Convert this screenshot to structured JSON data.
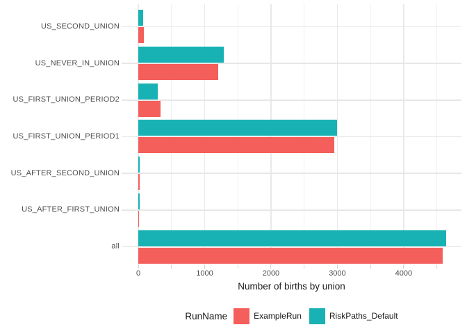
{
  "chart_data": {
    "type": "bar",
    "orientation": "horizontal",
    "title": "",
    "xlabel": "Number of births by union",
    "ylabel": "",
    "categories_top_to_bottom": [
      "US_SECOND_UNION",
      "US_NEVER_IN_UNION",
      "US_FIRST_UNION_PERIOD2",
      "US_FIRST_UNION_PERIOD1",
      "US_AFTER_SECOND_UNION",
      "US_AFTER_FIRST_UNION",
      "all"
    ],
    "series": [
      {
        "name": "ExampleRun",
        "color": "#F45E5B",
        "values": [
          85,
          1205,
          330,
          2950,
          18,
          15,
          4590
        ]
      },
      {
        "name": "RiskPaths_Default",
        "color": "#18B2B5",
        "values": [
          70,
          1290,
          290,
          3000,
          20,
          18,
          4640
        ]
      }
    ],
    "bar_order_within_group_top_to_bottom": [
      "RiskPaths_Default",
      "ExampleRun"
    ],
    "x_major_ticks": [
      0,
      1000,
      2000,
      3000,
      4000
    ],
    "x_minor_ticks": [
      500,
      1500,
      2500,
      3500,
      4500
    ],
    "xlim": [
      0,
      4870
    ],
    "grid": true,
    "legend": {
      "title": "RunName",
      "position": "bottom",
      "entries": [
        "ExampleRun",
        "RiskPaths_Default"
      ]
    }
  },
  "styles": {
    "background": "#FFFFFF",
    "grid_major_color": "#E9E9E9",
    "grid_minor_color": "#F1F1F1",
    "row_grid_color": "#E7E7E7",
    "tick_mark_color": "#D4D4D4",
    "tick_label_color": "#4D4D4D",
    "axis_title_color": "#1A1A1A",
    "legend_text_color": "#1A1A1A"
  }
}
